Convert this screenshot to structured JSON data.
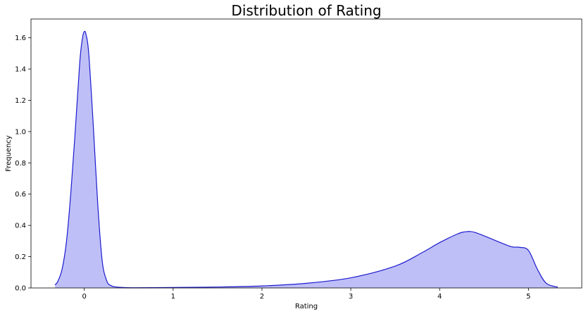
{
  "chart_data": {
    "type": "area",
    "title": "Distribution of Rating",
    "xlabel": "Rating",
    "ylabel": "Frequency",
    "xlim": [
      -0.6,
      5.6
    ],
    "ylim": [
      0,
      1.72
    ],
    "x_ticks": [
      0,
      1,
      2,
      3,
      4,
      5
    ],
    "y_ticks": [
      0.0,
      0.2,
      0.4,
      0.6,
      0.8,
      1.0,
      1.2,
      1.4,
      1.6
    ],
    "grid": false,
    "fill_color": "#bfbff7",
    "line_color": "#1c1ccf",
    "series": [
      {
        "x": [
          -0.33,
          -0.3,
          -0.25,
          -0.2,
          -0.15,
          -0.1,
          -0.05,
          -0.02,
          0.0,
          0.02,
          0.05,
          0.1,
          0.15,
          0.2,
          0.25,
          0.3,
          0.4,
          0.6,
          1.0,
          1.5,
          2.0,
          2.5,
          3.0,
          3.5,
          3.8,
          4.0,
          4.2,
          4.3,
          4.4,
          4.6,
          4.8,
          4.9,
          5.0,
          5.1,
          5.2,
          5.33
        ],
        "y": [
          0.02,
          0.04,
          0.12,
          0.3,
          0.62,
          1.02,
          1.45,
          1.6,
          1.64,
          1.62,
          1.5,
          1.05,
          0.55,
          0.18,
          0.05,
          0.015,
          0.004,
          0.001,
          0.003,
          0.006,
          0.013,
          0.03,
          0.065,
          0.14,
          0.225,
          0.29,
          0.345,
          0.36,
          0.355,
          0.31,
          0.265,
          0.26,
          0.24,
          0.12,
          0.03,
          0.005
        ]
      }
    ]
  }
}
